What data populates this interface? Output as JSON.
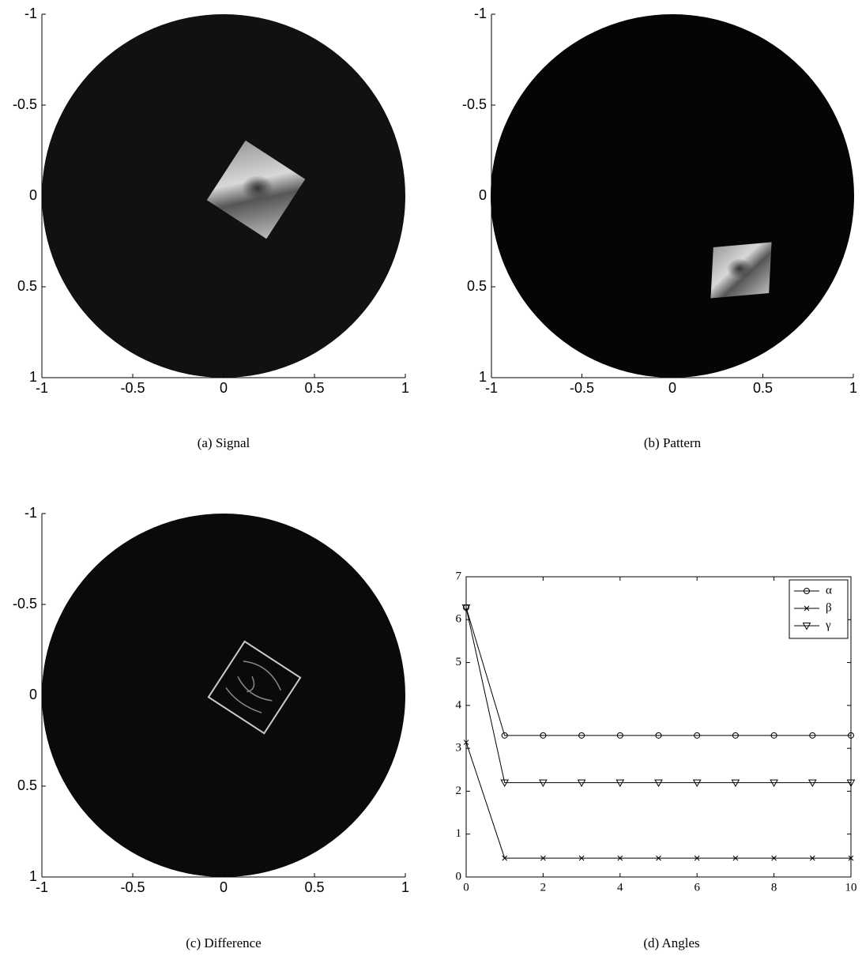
{
  "chart_data": [
    {
      "type": "image",
      "caption": "(a) Signal",
      "xlim": [
        -1,
        1
      ],
      "ylim": [
        1,
        -1
      ],
      "xticks": [
        -1,
        -0.5,
        0,
        0.5,
        1
      ],
      "yticks": [
        -1,
        -0.5,
        0,
        0.5,
        1
      ]
    },
    {
      "type": "image",
      "caption": "(b) Pattern",
      "xlim": [
        -1,
        1
      ],
      "ylim": [
        1,
        -1
      ],
      "xticks": [
        -1,
        -0.5,
        0,
        0.5,
        1
      ],
      "yticks": [
        -1,
        -0.5,
        0,
        0.5,
        1
      ]
    },
    {
      "type": "image",
      "caption": "(c) Difference",
      "xlim": [
        -1,
        1
      ],
      "ylim": [
        1,
        -1
      ],
      "xticks": [
        -1,
        -0.5,
        0,
        0.5,
        1
      ],
      "yticks": [
        -1,
        -0.5,
        0,
        0.5,
        1
      ]
    },
    {
      "type": "line",
      "caption": "(d) Angles",
      "x": [
        0,
        1,
        2,
        3,
        4,
        5,
        6,
        7,
        8,
        9,
        10
      ],
      "series": [
        {
          "name": "α",
          "color": "#000000",
          "marker": "circle",
          "values": [
            6.28,
            3.3,
            3.3,
            3.3,
            3.3,
            3.3,
            3.3,
            3.3,
            3.3,
            3.3,
            3.3
          ]
        },
        {
          "name": "β",
          "color": "#000000",
          "marker": "x",
          "values": [
            3.14,
            0.44,
            0.44,
            0.44,
            0.44,
            0.44,
            0.44,
            0.44,
            0.44,
            0.44,
            0.44
          ]
        },
        {
          "name": "γ",
          "color": "#000000",
          "marker": "triangle-down",
          "values": [
            6.28,
            2.2,
            2.2,
            2.2,
            2.2,
            2.2,
            2.2,
            2.2,
            2.2,
            2.2,
            2.2
          ]
        }
      ],
      "xlim": [
        0,
        10
      ],
      "ylim": [
        0,
        7
      ],
      "xticks": [
        0,
        2,
        4,
        6,
        8,
        10
      ],
      "yticks": [
        0,
        1,
        2,
        3,
        4,
        5,
        6,
        7
      ],
      "legend": "upper right"
    }
  ]
}
